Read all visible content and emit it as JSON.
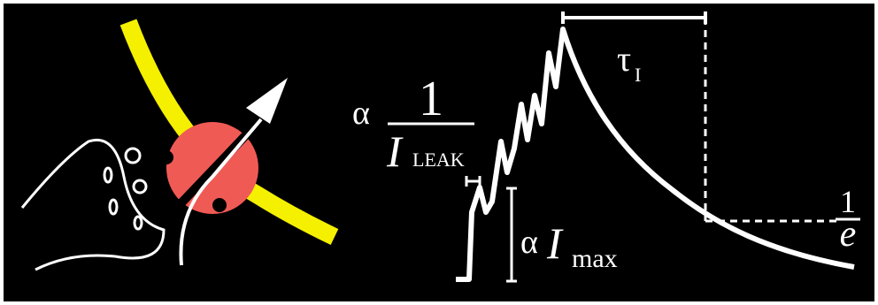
{
  "labels": {
    "alpha_leak": "α",
    "one_leak": "1",
    "i_leak": "I",
    "leak": "LEAK",
    "alpha_max": "α",
    "i_max": "I",
    "max": "max",
    "tau": "τ",
    "tau_sub": "I",
    "e_num": "1",
    "e_den": "e"
  }
}
